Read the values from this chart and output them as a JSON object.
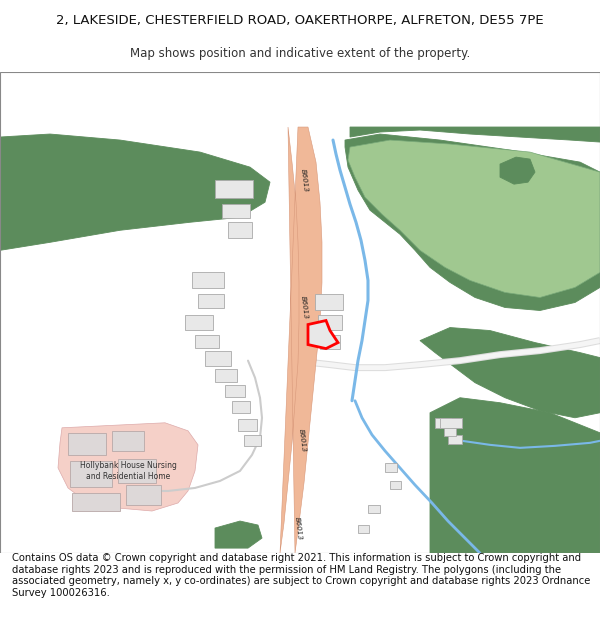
{
  "title_line1": "2, LAKESIDE, CHESTERFIELD ROAD, OAKERTHORPE, ALFRETON, DE55 7PE",
  "title_line2": "Map shows position and indicative extent of the property.",
  "footer_text": "Contains OS data © Crown copyright and database right 2021. This information is subject to Crown copyright and database rights 2023 and is reproduced with the permission of HM Land Registry. The polygons (including the associated geometry, namely x, y co-ordinates) are subject to Crown copyright and database rights 2023 Ordnance Survey 100026316.",
  "bg_color": "#ffffff",
  "title_fontsize": 9.5,
  "subtitle_fontsize": 8.5,
  "footer_fontsize": 7.2,
  "dark_green": "#5c8c5c",
  "light_green": "#a0c890",
  "mid_green": "#7aaa7a",
  "road_color": "#f0b898",
  "stream_color": "#7ab8e8",
  "building_color": "#e0e0e0",
  "building_edge": "#aaaaaa",
  "hollybank_fill": "#f5d0c8",
  "hollybank_edge": "#ddaaaa",
  "prop_fill": "#e8e8e8",
  "prop_edge": "#ff0000"
}
